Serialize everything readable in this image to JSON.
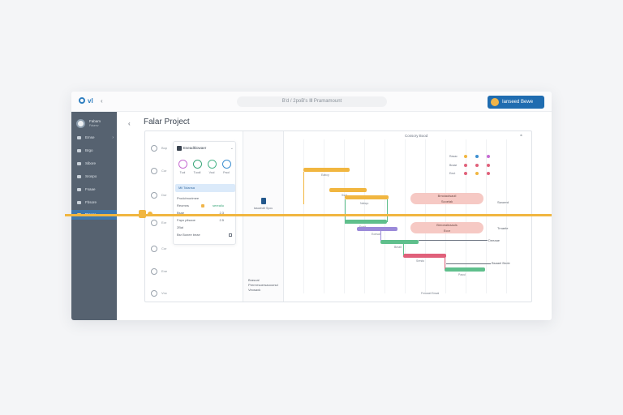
{
  "topbar": {
    "logo": "vl",
    "search_text": "B'd / 2poB's Ⅲ Pramamount",
    "share_label": "Ianseed Bewe"
  },
  "sidebar": {
    "user_name": "Fabam",
    "user_sub": "Fdsenv",
    "items": [
      {
        "label": "Emse"
      },
      {
        "label": "Brgo"
      },
      {
        "label": "Sibore"
      },
      {
        "label": "Srospo"
      },
      {
        "label": "Fsaae"
      },
      {
        "label": "Fbsore"
      },
      {
        "label": "Praaro"
      }
    ]
  },
  "page": {
    "title": "Falar Project"
  },
  "rail": [
    {
      "label": "Bop"
    },
    {
      "label": "Cor"
    },
    {
      "label": "Dor"
    },
    {
      "label": "Eor"
    },
    {
      "label": "Cor"
    },
    {
      "label": "Ene"
    },
    {
      "label": "Vnc"
    }
  ],
  "card": {
    "title": "Eseadklowaer",
    "statuses": [
      {
        "label": "Tuol",
        "color": "#c66bd2"
      },
      {
        "label": "Tuodl",
        "color": "#3aa67a"
      },
      {
        "label": "Voul",
        "color": "#4bb58a"
      },
      {
        "label": "Frsol",
        "color": "#3d8fd0"
      }
    ],
    "selected": "Mil  Tolansa",
    "rows": [
      {
        "label": "Prodchnorimee",
        "value": ""
      },
      {
        "label": "Reomns",
        "value": "sereallu",
        "value_color": "green"
      },
      {
        "label": "Bsae",
        "value": "2.3"
      },
      {
        "label": "Fapo pilsaoe",
        "value": "2.5"
      },
      {
        "label": "2Bal",
        "value": ""
      },
      {
        "label": "Bsr Bonee beae",
        "value": ""
      }
    ]
  },
  "middle": {
    "pin_caption": "tascahdlt\nSpou",
    "footer_lines": [
      "Brasoal",
      "Prerrresoersaooorsd",
      "Veosaxk"
    ]
  },
  "gantt": {
    "title": "Cossory Bood",
    "bars": [
      {
        "label": "Eabcy",
        "color": "#f1b640"
      },
      {
        "label": "Ssal",
        "color": "#f1b640"
      },
      {
        "label": "Nabqo",
        "color": "#f1b640"
      },
      {
        "label": "Enad",
        "color": "#5fbf8c"
      },
      {
        "label": "Eoesal",
        "color": "#9b8ad9"
      },
      {
        "label": "Bmalt",
        "color": "#5fbf8c"
      },
      {
        "label": "Sresto",
        "color": "#e0607a"
      },
      {
        "label": "Paoul",
        "color": "#5fbf8c"
      }
    ],
    "pills": [
      {
        "title": "Bmoiaolsaoil",
        "sub": "Scoelak"
      },
      {
        "title": "Breoealeaauls",
        "sub": "Ecor"
      }
    ],
    "notes": [
      "Ssroerd",
      "Trnaele",
      "Deeaae",
      "Bsaael Bnde"
    ],
    "legend": [
      {
        "label": "Rasac",
        "c1": "#f1b640",
        "c2": "#3d8fd0",
        "c3": "#c66bd2"
      },
      {
        "label": "Braae",
        "c1": "#e0607a",
        "c2": "#e0607a",
        "c3": "#e0607a"
      },
      {
        "label": "Eeot",
        "c1": "#e0607a",
        "c2": "#f1b640",
        "c3": "#e0607a"
      }
    ],
    "footer": "Fnsoael Bnsal"
  }
}
